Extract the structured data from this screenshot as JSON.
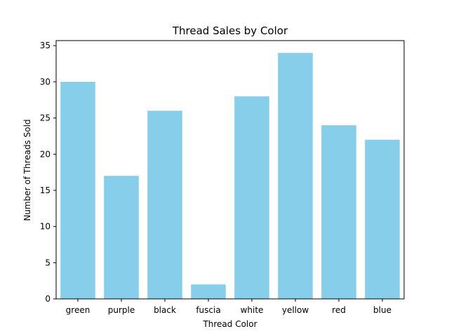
{
  "chart_data": {
    "type": "bar",
    "title": "Thread Sales by Color",
    "xlabel": "Thread Color",
    "ylabel": "Number of Threads Sold",
    "categories": [
      "green",
      "purple",
      "black",
      "fuscia",
      "white",
      "yellow",
      "red",
      "blue"
    ],
    "values": [
      30,
      17,
      26,
      2,
      28,
      34,
      24,
      22
    ],
    "ylim": [
      0,
      35.7
    ],
    "yticks": [
      0,
      5,
      10,
      15,
      20,
      25,
      30,
      35
    ],
    "bar_color": "#87ceeb",
    "grid": false,
    "legend": "none"
  }
}
